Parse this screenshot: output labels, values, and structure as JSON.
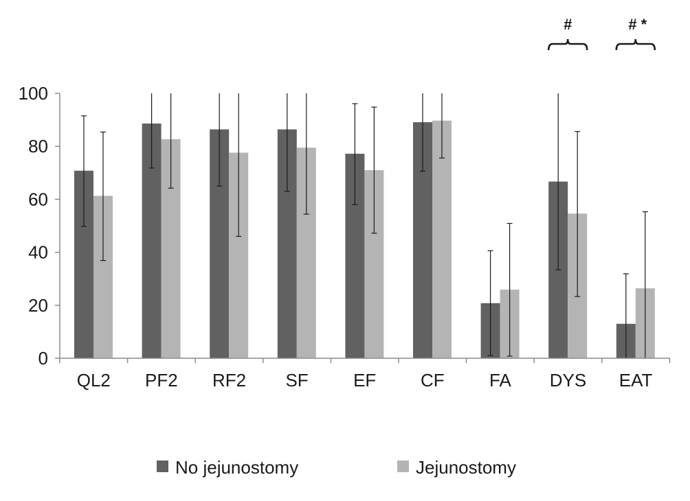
{
  "chart_data": {
    "type": "bar",
    "title": "",
    "xlabel": "",
    "ylabel": "",
    "ylim": [
      0,
      100
    ],
    "yticks": [
      "0",
      "20",
      "40",
      "60",
      "80",
      "100"
    ],
    "grid": false,
    "legend_position": "bottom",
    "categories": [
      "QL2",
      "PF2",
      "RF2",
      "SF",
      "EF",
      "CF",
      "FA",
      "DYS",
      "EAT"
    ],
    "series": [
      {
        "name": "No jejunostomy",
        "color": "#616161",
        "values": [
          70.8,
          88.6,
          86.4,
          86.4,
          77.2,
          89.1,
          20.8,
          66.7,
          13.0
        ],
        "error_low": [
          49.8,
          71.8,
          65.0,
          63.0,
          58.0,
          70.6,
          1.0,
          33.4,
          0.0
        ],
        "error_high": [
          91.5,
          100,
          100,
          100,
          96.1,
          100,
          40.6,
          100,
          31.9
        ]
      },
      {
        "name": "Jejunostomy",
        "color": "#b4b4b4",
        "values": [
          61.3,
          82.7,
          77.6,
          79.5,
          71.0,
          89.7,
          25.9,
          54.6,
          26.4
        ],
        "error_low": [
          36.9,
          64.2,
          46.0,
          54.4,
          47.2,
          75.6,
          0.8,
          23.3,
          0.0
        ],
        "error_high": [
          85.4,
          100,
          100,
          100,
          94.8,
          100,
          50.9,
          85.6,
          55.3
        ]
      }
    ],
    "annotations": [
      {
        "category": "DYS",
        "text": "#"
      },
      {
        "category": "EAT",
        "text": "# *"
      }
    ]
  }
}
